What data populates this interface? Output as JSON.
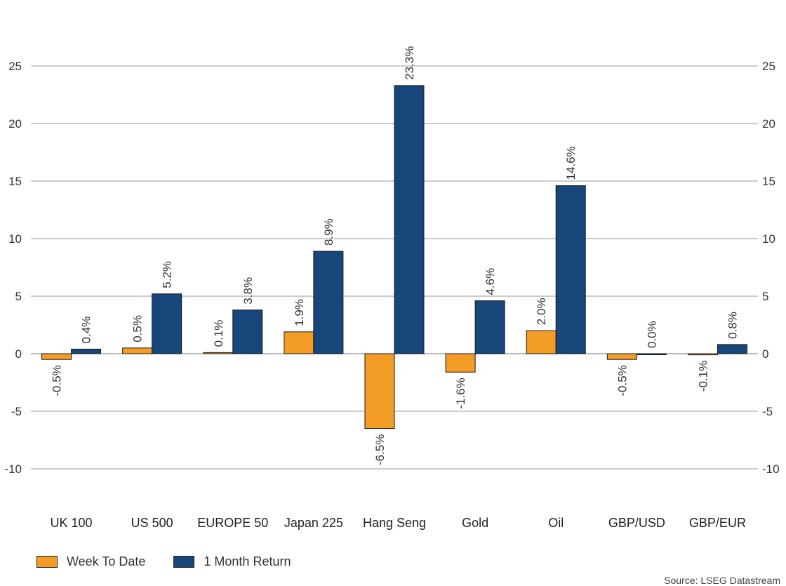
{
  "chart_data": {
    "type": "bar",
    "title": "",
    "xlabel": "",
    "ylabel": "",
    "ylim": [
      -10,
      25
    ],
    "yticks": [
      -10,
      -5,
      0,
      5,
      10,
      15,
      20,
      25
    ],
    "categories": [
      "UK 100",
      "US 500",
      "EUROPE 50",
      "Japan 225",
      "Hang Seng",
      "Gold",
      "Oil",
      "GBP/USD",
      "GBP/EUR"
    ],
    "series": [
      {
        "name": "Week To Date",
        "color": "#F39C26",
        "values": [
          -0.5,
          0.5,
          0.1,
          1.9,
          -6.5,
          -1.6,
          2.0,
          -0.5,
          -0.1
        ],
        "labels": [
          "-0.5%",
          "0.5%",
          "0.1%",
          "1.9%",
          "-6.5%",
          "-1.6%",
          "2.0%",
          "-0.5%",
          "-0.1%"
        ]
      },
      {
        "name": "1 Month Return",
        "color": "#16467A",
        "values": [
          0.4,
          5.2,
          3.8,
          8.9,
          23.3,
          4.6,
          14.6,
          0.0,
          0.8
        ],
        "labels": [
          "0.4%",
          "5.2%",
          "3.8%",
          "8.9%",
          "23.3%",
          "4.6%",
          "14.6%",
          "0.0%",
          "0.8%"
        ]
      }
    ],
    "grid": true,
    "legend_position": "bottom-left",
    "source": "Source: LSEG Datastream"
  }
}
